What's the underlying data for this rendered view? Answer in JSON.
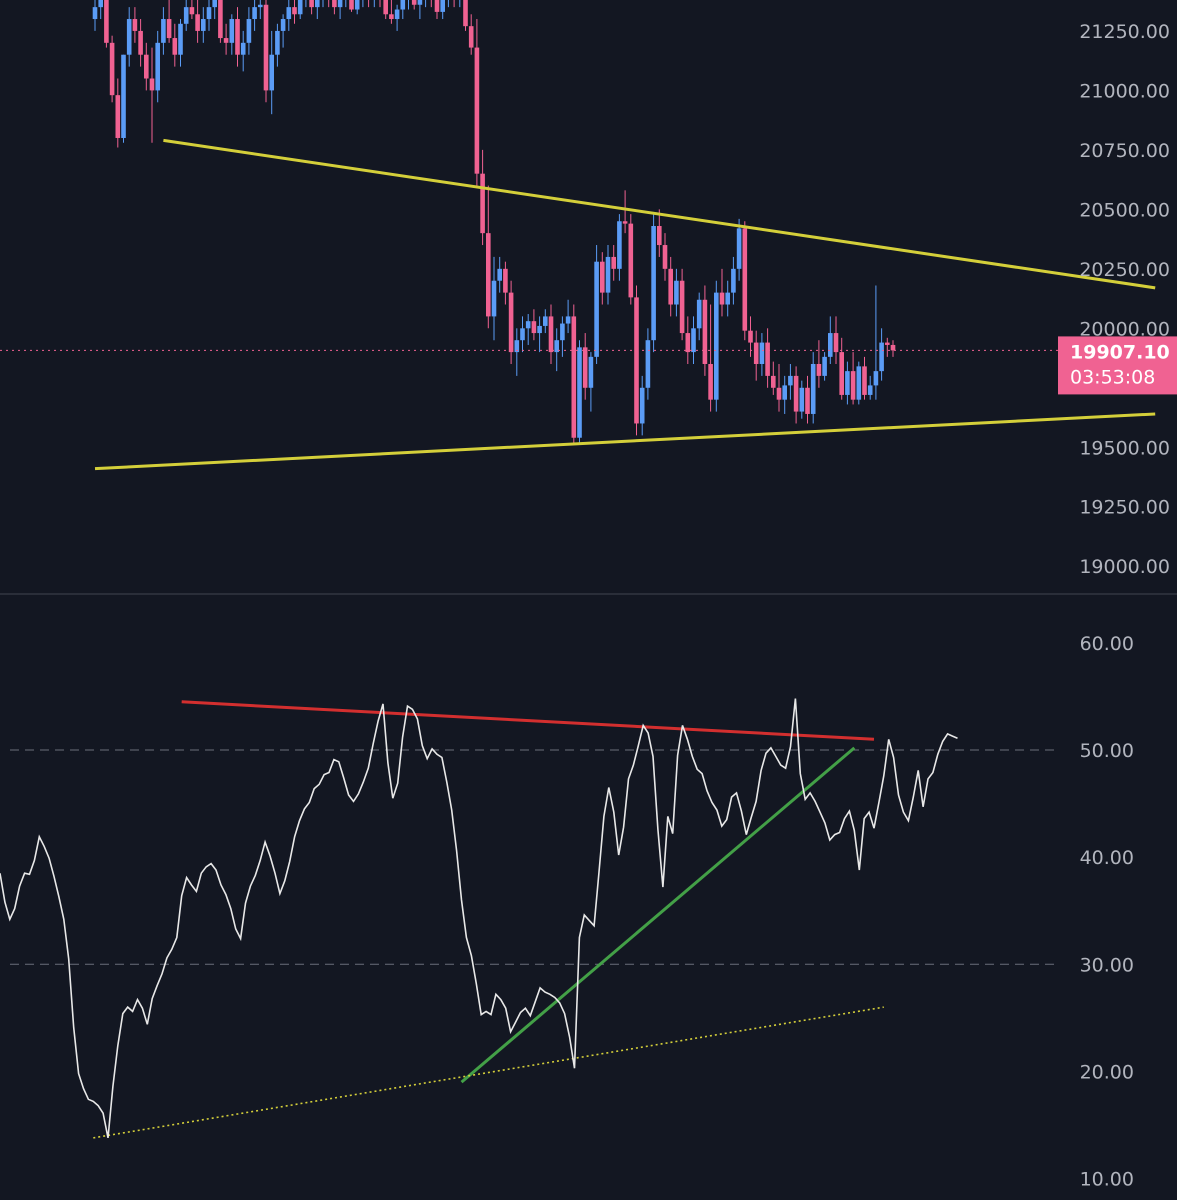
{
  "colors": {
    "background": "#131722",
    "up_candle": "#5b9cf6",
    "down_candle": "#f06292",
    "price_tag": "#f06292",
    "rsi_line": "#e8e8e8",
    "trendline_yellow": "#d4cf3a",
    "trendline_red": "#d32f2f",
    "trendline_green": "#43a047",
    "dotted_yellow": "#d4cf3a",
    "axis_text": "#b2b5be",
    "grid_dash": "#6b6f7a",
    "pane_separator": "#2a2e39"
  },
  "chart_data": [
    {
      "type": "candlestick",
      "pane": "price",
      "ylim": [
        18900,
        21380
      ],
      "ytick_labels": [
        "21250.00",
        "21000.00",
        "20750.00",
        "20500.00",
        "20250.00",
        "20000.00",
        "19500.00",
        "19250.00",
        "19000.00"
      ],
      "ytick_values": [
        21250,
        21000,
        20750,
        20500,
        20250,
        20000,
        19500,
        19250,
        19000
      ],
      "current_price": {
        "value": 19907.1,
        "label": "19907.10",
        "countdown": "03:53:08"
      },
      "trendlines": [
        {
          "name": "upper",
          "points": [
            [
              12,
              20790
            ],
            [
              186,
              20170
            ]
          ]
        },
        {
          "name": "lower",
          "points": [
            [
              0,
              19410
            ],
            [
              186,
              19640
            ]
          ]
        }
      ],
      "candles": [
        [
          21300,
          21400,
          21250,
          21350
        ],
        [
          21350,
          21420,
          21300,
          21380
        ],
        [
          21380,
          21420,
          21180,
          21200
        ],
        [
          21200,
          21230,
          20950,
          20980
        ],
        [
          20980,
          21050,
          20760,
          20800
        ],
        [
          20800,
          21150,
          20780,
          21150
        ],
        [
          21150,
          21350,
          21100,
          21300
        ],
        [
          21300,
          21350,
          21200,
          21250
        ],
        [
          21250,
          21300,
          21100,
          21150
        ],
        [
          21150,
          21200,
          21000,
          21050
        ],
        [
          21050,
          21180,
          20780,
          21000
        ],
        [
          21000,
          21250,
          20950,
          21200
        ],
        [
          21200,
          21350,
          21150,
          21300
        ],
        [
          21300,
          21380,
          21200,
          21220
        ],
        [
          21220,
          21280,
          21100,
          21150
        ],
        [
          21150,
          21300,
          21100,
          21280
        ],
        [
          21280,
          21400,
          21250,
          21350
        ],
        [
          21350,
          21400,
          21300,
          21320
        ],
        [
          21320,
          21380,
          21200,
          21250
        ],
        [
          21250,
          21350,
          21200,
          21300
        ],
        [
          21300,
          21400,
          21250,
          21350
        ],
        [
          21350,
          21400,
          21300,
          21380
        ],
        [
          21380,
          21400,
          21200,
          21220
        ],
        [
          21220,
          21280,
          21150,
          21200
        ],
        [
          21200,
          21320,
          21150,
          21300
        ],
        [
          21300,
          21350,
          21100,
          21150
        ],
        [
          21150,
          21250,
          21080,
          21200
        ],
        [
          21200,
          21350,
          21150,
          21300
        ],
        [
          21300,
          21380,
          21250,
          21350
        ],
        [
          21350,
          21400,
          21300,
          21360
        ],
        [
          21360,
          21400,
          20950,
          21000
        ],
        [
          21000,
          21250,
          20900,
          21150
        ],
        [
          21150,
          21280,
          21100,
          21250
        ],
        [
          21250,
          21320,
          21180,
          21300
        ],
        [
          21300,
          21380,
          21250,
          21350
        ],
        [
          21350,
          21400,
          21280,
          21320
        ],
        [
          21320,
          21400,
          21300,
          21380
        ],
        [
          21380,
          21420,
          21350,
          21400
        ],
        [
          21400,
          21420,
          21320,
          21350
        ],
        [
          21350,
          21400,
          21300,
          21380
        ],
        [
          21380,
          21420,
          21350,
          21400
        ],
        [
          21400,
          21420,
          21350,
          21380
        ],
        [
          21380,
          21400,
          21320,
          21350
        ],
        [
          21350,
          21400,
          21300,
          21380
        ],
        [
          21380,
          21420,
          21350,
          21400
        ],
        [
          21400,
          21420,
          21330,
          21340
        ],
        [
          21340,
          21400,
          21320,
          21380
        ],
        [
          21380,
          21420,
          21350,
          21400
        ],
        [
          21400,
          21420,
          21350,
          21380
        ],
        [
          21380,
          21420,
          21350,
          21400
        ],
        [
          21400,
          21420,
          21350,
          21380
        ],
        [
          21380,
          21420,
          21300,
          21320
        ],
        [
          21320,
          21380,
          21280,
          21300
        ],
        [
          21300,
          21360,
          21250,
          21340
        ],
        [
          21340,
          21400,
          21300,
          21380
        ],
        [
          21380,
          21420,
          21340,
          21400
        ],
        [
          21400,
          21420,
          21340,
          21360
        ],
        [
          21360,
          21400,
          21300,
          21380
        ],
        [
          21380,
          21420,
          21350,
          21400
        ],
        [
          21400,
          21420,
          21350,
          21380
        ],
        [
          21380,
          21420,
          21300,
          21330
        ],
        [
          21330,
          21400,
          21300,
          21380
        ],
        [
          21380,
          21420,
          21350,
          21400
        ],
        [
          21400,
          21420,
          21350,
          21380
        ],
        [
          21380,
          21420,
          21350,
          21400
        ],
        [
          21400,
          21420,
          21250,
          21270
        ],
        [
          21270,
          21320,
          21150,
          21180
        ],
        [
          21180,
          21300,
          20600,
          20650
        ],
        [
          20650,
          20750,
          20350,
          20400
        ],
        [
          20400,
          20600,
          20000,
          20050
        ],
        [
          20050,
          20300,
          19950,
          20200
        ],
        [
          20200,
          20300,
          20150,
          20250
        ],
        [
          20250,
          20280,
          20100,
          20150
        ],
        [
          20150,
          20200,
          19850,
          19900
        ],
        [
          19900,
          20000,
          19800,
          19950
        ],
        [
          19950,
          20050,
          19900,
          20000
        ],
        [
          20000,
          20060,
          19930,
          20030
        ],
        [
          20030,
          20080,
          19950,
          19980
        ],
        [
          19980,
          20050,
          19900,
          20010
        ],
        [
          20010,
          20080,
          19980,
          20050
        ],
        [
          20050,
          20100,
          19850,
          19900
        ],
        [
          19900,
          20000,
          19820,
          19950
        ],
        [
          19950,
          20050,
          19880,
          20020
        ],
        [
          20020,
          20120,
          19980,
          20050
        ],
        [
          20050,
          20100,
          19520,
          19540
        ],
        [
          19540,
          19950,
          19520,
          19920
        ],
        [
          19920,
          19980,
          19700,
          19750
        ],
        [
          19750,
          19900,
          19650,
          19880
        ],
        [
          19880,
          20350,
          19850,
          20280
        ],
        [
          20280,
          20320,
          20100,
          20150
        ],
        [
          20150,
          20350,
          20100,
          20300
        ],
        [
          20300,
          20350,
          20200,
          20250
        ],
        [
          20250,
          20480,
          20200,
          20450
        ],
        [
          20450,
          20580,
          20400,
          20440
        ],
        [
          20440,
          20480,
          20100,
          20130
        ],
        [
          20130,
          20180,
          19550,
          19600
        ],
        [
          19600,
          19800,
          19550,
          19750
        ],
        [
          19750,
          20000,
          19700,
          19950
        ],
        [
          19950,
          20480,
          19900,
          20430
        ],
        [
          20430,
          20500,
          20300,
          20350
        ],
        [
          20350,
          20400,
          20200,
          20250
        ],
        [
          20250,
          20300,
          20050,
          20100
        ],
        [
          20100,
          20250,
          20050,
          20200
        ],
        [
          20200,
          20250,
          19950,
          19980
        ],
        [
          19980,
          20050,
          19850,
          19900
        ],
        [
          19900,
          20050,
          19850,
          20000
        ],
        [
          20000,
          20150,
          19950,
          20120
        ],
        [
          20120,
          20180,
          19800,
          19850
        ],
        [
          19850,
          20100,
          19650,
          19700
        ],
        [
          19700,
          20200,
          19650,
          20150
        ],
        [
          20150,
          20250,
          20050,
          20100
        ],
        [
          20100,
          20200,
          20050,
          20150
        ],
        [
          20150,
          20300,
          20100,
          20250
        ],
        [
          20250,
          20460,
          20200,
          20420
        ],
        [
          20420,
          20450,
          19950,
          19990
        ],
        [
          19990,
          20050,
          19880,
          19940
        ],
        [
          19940,
          19990,
          19780,
          19850
        ],
        [
          19850,
          19980,
          19800,
          19940
        ],
        [
          19940,
          20000,
          19750,
          19800
        ],
        [
          19800,
          19860,
          19720,
          19750
        ],
        [
          19750,
          19850,
          19650,
          19700
        ],
        [
          19700,
          19800,
          19640,
          19760
        ],
        [
          19760,
          19850,
          19700,
          19800
        ],
        [
          19800,
          19840,
          19600,
          19650
        ],
        [
          19650,
          19780,
          19620,
          19750
        ],
        [
          19750,
          19800,
          19600,
          19640
        ],
        [
          19640,
          19900,
          19600,
          19850
        ],
        [
          19850,
          19950,
          19750,
          19800
        ],
        [
          19800,
          19900,
          19780,
          19880
        ],
        [
          19880,
          20050,
          19850,
          19980
        ],
        [
          19980,
          20050,
          19850,
          19900
        ],
        [
          19900,
          19960,
          19700,
          19720
        ],
        [
          19720,
          19860,
          19680,
          19820
        ],
        [
          19820,
          19900,
          19680,
          19700
        ],
        [
          19700,
          19860,
          19680,
          19840
        ],
        [
          19840,
          19880,
          19700,
          19720
        ],
        [
          19720,
          19800,
          19700,
          19760
        ],
        [
          19760,
          20180,
          19700,
          19820
        ],
        [
          19820,
          20000,
          19780,
          19940
        ],
        [
          19940,
          19960,
          19880,
          19930
        ],
        [
          19930,
          19950,
          19880,
          19907.1
        ]
      ]
    },
    {
      "type": "line",
      "pane": "rsi",
      "ylim": [
        8,
        64
      ],
      "ytick_labels": [
        "60.00",
        "50.00",
        "40.00",
        "30.00",
        "20.00",
        "10.00"
      ],
      "ytick_values": [
        60,
        50,
        40,
        30,
        20,
        10
      ],
      "reference_lines": [
        50,
        30
      ],
      "trendlines": [
        {
          "name": "resistance",
          "style": "solid",
          "points": [
            [
              37,
              54.5
            ],
            [
              178,
              51.0
            ]
          ]
        },
        {
          "name": "support",
          "style": "solid",
          "points": [
            [
              94,
              19.0
            ],
            [
              174,
              50.2
            ]
          ]
        },
        {
          "name": "long-term-support",
          "style": "dotted",
          "points": [
            [
              19,
              13.8
            ],
            [
              180,
              26.0
            ]
          ]
        }
      ],
      "values": [
        38.5,
        35.8,
        34.2,
        35.2,
        37.3,
        38.5,
        38.4,
        39.7,
        41.9,
        41.0,
        39.9,
        38.2,
        36.3,
        34.2,
        30.5,
        24.1,
        19.8,
        18.4,
        17.4,
        17.2,
        16.8,
        16.1,
        13.8,
        18.6,
        22.4,
        25.4,
        26.0,
        25.6,
        26.7,
        25.9,
        24.4,
        26.8,
        28.0,
        29.1,
        30.6,
        31.4,
        32.5,
        36.4,
        38.1,
        37.4,
        36.8,
        38.5,
        39.1,
        39.4,
        38.8,
        37.4,
        36.5,
        35.2,
        33.3,
        32.4,
        35.7,
        37.3,
        38.3,
        39.7,
        41.4,
        40.1,
        38.5,
        36.6,
        37.8,
        39.6,
        41.9,
        43.4,
        44.5,
        45.1,
        46.4,
        46.8,
        47.7,
        47.9,
        49.1,
        48.9,
        47.4,
        45.8,
        45.2,
        45.9,
        47.0,
        48.3,
        50.6,
        52.7,
        54.3,
        48.8,
        45.5,
        46.9,
        51.2,
        54.1,
        53.8,
        52.9,
        50.4,
        49.2,
        50.1,
        49.6,
        49.3,
        47.0,
        44.4,
        40.6,
        36.0,
        32.5,
        30.8,
        28.2,
        25.3,
        25.6,
        25.3,
        27.2,
        26.7,
        25.9,
        23.7,
        24.6,
        25.5,
        25.9,
        25.2,
        26.5,
        27.8,
        27.4,
        27.2,
        26.9,
        26.4,
        25.4,
        23.2,
        20.3,
        32.5,
        34.6,
        34.1,
        33.6,
        38.6,
        43.8,
        46.5,
        44.2,
        40.2,
        42.8,
        47.3,
        48.6,
        50.4,
        52.3,
        51.6,
        49.4,
        42.6,
        37.2,
        43.8,
        42.2,
        49.5,
        52.3,
        51.0,
        49.4,
        48.2,
        47.8,
        46.2,
        45.1,
        44.4,
        42.9,
        43.5,
        45.6,
        46.0,
        44.3,
        42.1,
        43.7,
        45.2,
        48.1,
        49.7,
        50.2,
        49.4,
        48.6,
        48.3,
        50.3,
        54.8,
        47.8,
        45.4,
        46.0,
        45.2,
        44.2,
        43.2,
        41.6,
        42.1,
        42.3,
        43.6,
        44.3,
        42.5,
        38.8,
        43.6,
        44.2,
        42.7,
        45.1,
        47.6,
        51.0,
        49.3,
        45.8,
        44.2,
        43.4,
        45.6,
        48.1,
        44.7,
        47.3,
        47.9,
        49.6,
        50.8,
        51.5,
        51.3,
        51.1
      ]
    }
  ]
}
